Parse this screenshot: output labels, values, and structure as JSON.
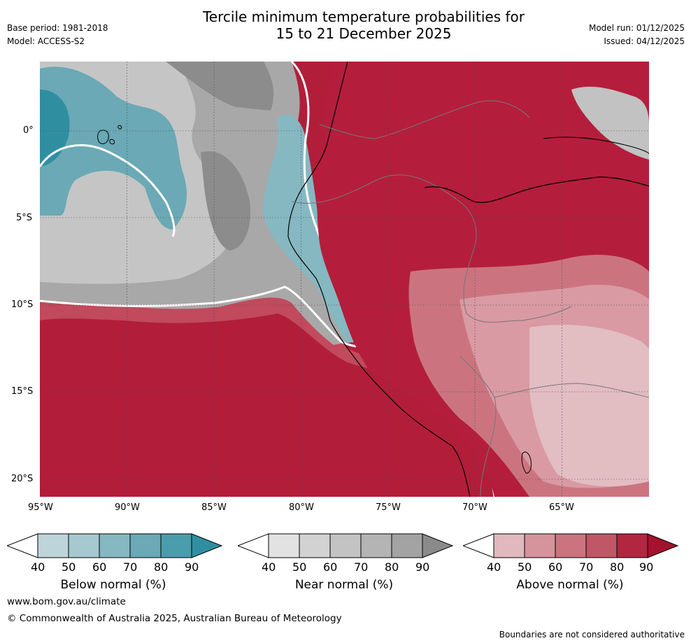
{
  "header": {
    "title_line1": "Tercile minimum temperature probabilities for",
    "title_line2": "15 to 21 December 2025",
    "base_period": "Base period: 1981-2018",
    "model": "Model: ACCESS-S2",
    "model_run": "Model run: 01/12/2025",
    "issued": "Issued: 04/12/2025"
  },
  "map": {
    "lat_labels": [
      "0°",
      "5°S",
      "10°S",
      "15°S",
      "20°S"
    ],
    "lon_labels": [
      "95°W",
      "90°W",
      "85°W",
      "80°W",
      "75°W",
      "70°W",
      "65°W"
    ]
  },
  "colorbars": {
    "below": {
      "label": "Below normal (%)",
      "ticks": [
        "40",
        "50",
        "60",
        "70",
        "80",
        "90"
      ],
      "colors": [
        "#ffffff",
        "#bdd5da",
        "#a5c9cf",
        "#86b8c2",
        "#6aa9b5",
        "#4a9dac",
        "#2f8fa1"
      ]
    },
    "near": {
      "label": "Near normal (%)",
      "ticks": [
        "40",
        "50",
        "60",
        "70",
        "80",
        "90"
      ],
      "colors": [
        "#ffffff",
        "#e2e2e2",
        "#d2d2d2",
        "#c3c3c3",
        "#b4b4b4",
        "#a3a3a3",
        "#8a8a8a"
      ]
    },
    "above": {
      "label": "Above normal (%)",
      "ticks": [
        "40",
        "50",
        "60",
        "70",
        "80",
        "90"
      ],
      "colors": [
        "#ffffff",
        "#e0b8bd",
        "#d5939b",
        "#cb7480",
        "#bf5767",
        "#b22640",
        "#a3122e"
      ]
    }
  },
  "footer": {
    "website": "www.bom.gov.au/climate",
    "copyright": "© Commonwealth of Australia 2025, Australian Bureau of Meteorology",
    "disclaimer": "Boundaries are not considered authoritative"
  }
}
